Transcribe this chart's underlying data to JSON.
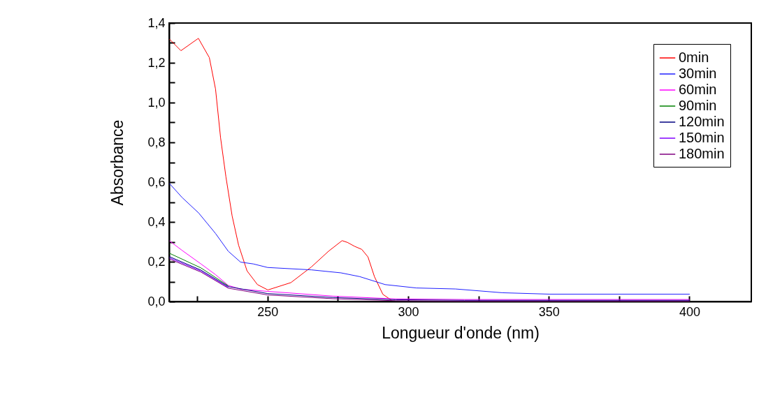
{
  "chart_data": {
    "type": "line",
    "xlabel": "Longueur d'onde (nm)",
    "ylabel": "Absorbance",
    "xlim": [
      215,
      422
    ],
    "xticks": [
      {
        "value": 225,
        "label": null
      },
      250,
      {
        "value": 275,
        "label": null
      },
      300,
      {
        "value": 325,
        "label": null
      },
      350,
      {
        "value": 375,
        "label": null
      },
      400
    ],
    "ylim": [
      0,
      1.4
    ],
    "yticks": [
      {
        "value": 0,
        "label": "0,0"
      },
      {
        "value": 0.1,
        "label": null
      },
      {
        "value": 0.2,
        "label": "0,2"
      },
      {
        "value": 0.3,
        "label": null
      },
      {
        "value": 0.4,
        "label": "0,4"
      },
      {
        "value": 0.5,
        "label": null
      },
      {
        "value": 0.6,
        "label": "0,6"
      },
      {
        "value": 0.7,
        "label": null
      },
      {
        "value": 0.8,
        "label": "0,8"
      },
      {
        "value": 0.9,
        "label": null
      },
      {
        "value": 1.0,
        "label": "1,0"
      },
      {
        "value": 1.1,
        "label": null
      },
      {
        "value": 1.2,
        "label": "1,2"
      },
      {
        "value": 1.3,
        "label": null
      },
      {
        "value": 1.4,
        "label": "1,4"
      }
    ],
    "legend": "top right",
    "grid": false,
    "marker": "none",
    "line_style": "solid",
    "series": [
      {
        "name": "0min",
        "color": "#ff0000",
        "x": [
          215.2,
          219.2,
          225.4,
          229.3,
          231.5,
          233.3,
          235.2,
          237.4,
          239.7,
          242.7,
          246.4,
          250.1,
          258.3,
          265.6,
          271.7,
          276.5,
          278.4,
          281,
          283.5,
          285.7,
          288,
          291,
          294
        ],
        "values": [
          1.318,
          1.261,
          1.323,
          1.226,
          1.068,
          0.822,
          0.626,
          0.43,
          0.283,
          0.154,
          0.085,
          0.058,
          0.095,
          0.174,
          0.253,
          0.306,
          0.297,
          0.277,
          0.262,
          0.224,
          0.125,
          0.036,
          0.007
        ]
      },
      {
        "name": "30min",
        "color": "#2020ff",
        "x": [
          215.2,
          219.6,
          225.5,
          231.5,
          236,
          240.4,
          244.9,
          250,
          265.6,
          276.1,
          282.8,
          291.8,
          302.9,
          316.8,
          333.5,
          350.2,
          400
        ],
        "values": [
          0.592,
          0.523,
          0.445,
          0.342,
          0.253,
          0.198,
          0.189,
          0.171,
          0.159,
          0.144,
          0.125,
          0.085,
          0.068,
          0.063,
          0.044,
          0.037,
          0.037
        ]
      },
      {
        "name": "60min",
        "color": "#ff00ff",
        "x": [
          215.2,
          219.6,
          226.3,
          231.5,
          236,
          240.4,
          250,
          273.2,
          295.6,
          320,
          400
        ],
        "values": [
          0.304,
          0.257,
          0.189,
          0.135,
          0.081,
          0.062,
          0.051,
          0.027,
          0.013,
          0.01,
          0.01
        ]
      },
      {
        "name": "90min",
        "color": "#008000",
        "x": [
          215.2,
          226.3,
          236
        ],
        "values": [
          0.242,
          0.169,
          0.079
        ]
      },
      {
        "name": "120min",
        "color": "#000080",
        "x": [
          215.2,
          226.3,
          236,
          250,
          273.2,
          295.6,
          320,
          400
        ],
        "values": [
          0.225,
          0.158,
          0.075,
          0.04,
          0.02,
          0.009,
          0.006,
          0.006
        ]
      },
      {
        "name": "150min",
        "color": "#8000ff",
        "x": [
          215.2,
          226.3,
          236
        ],
        "values": [
          0.219,
          0.153,
          0.071
        ]
      },
      {
        "name": "180min",
        "color": "#800080",
        "x": [
          215.2,
          226.3,
          236,
          250,
          273.2,
          295.6,
          320,
          400
        ],
        "values": [
          0.213,
          0.148,
          0.067,
          0.033,
          0.014,
          0.004,
          0.002,
          0.002
        ]
      }
    ]
  }
}
